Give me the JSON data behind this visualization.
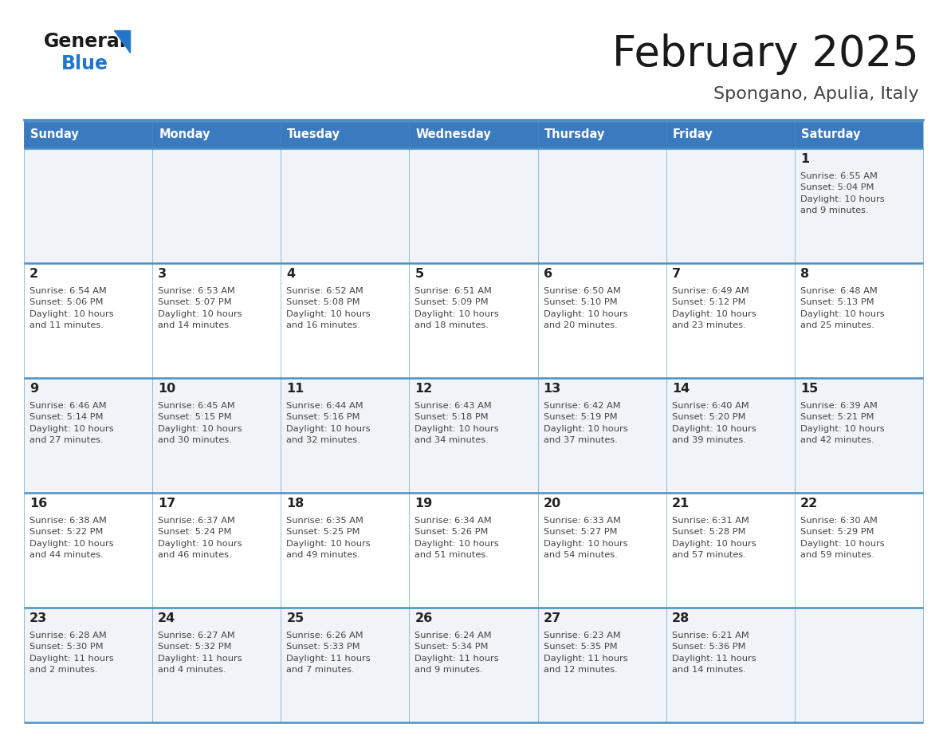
{
  "title": "February 2025",
  "subtitle": "Spongano, Apulia, Italy",
  "days_of_week": [
    "Sunday",
    "Monday",
    "Tuesday",
    "Wednesday",
    "Thursday",
    "Friday",
    "Saturday"
  ],
  "header_bg": "#3a7abf",
  "header_text": "#ffffff",
  "row_bg_light": "#f0f4f8",
  "row_bg_white": "#ffffff",
  "border_color": "#4a90c4",
  "title_color": "#1a1a1a",
  "subtitle_color": "#444444",
  "day_number_color": "#222222",
  "cell_text_color": "#444444",
  "logo_general_color": "#1a1a1a",
  "logo_blue_color": "#2277cc",
  "weeks": [
    [
      {
        "day": null,
        "info": null
      },
      {
        "day": null,
        "info": null
      },
      {
        "day": null,
        "info": null
      },
      {
        "day": null,
        "info": null
      },
      {
        "day": null,
        "info": null
      },
      {
        "day": null,
        "info": null
      },
      {
        "day": 1,
        "info": "Sunrise: 6:55 AM\nSunset: 5:04 PM\nDaylight: 10 hours\nand 9 minutes."
      }
    ],
    [
      {
        "day": 2,
        "info": "Sunrise: 6:54 AM\nSunset: 5:06 PM\nDaylight: 10 hours\nand 11 minutes."
      },
      {
        "day": 3,
        "info": "Sunrise: 6:53 AM\nSunset: 5:07 PM\nDaylight: 10 hours\nand 14 minutes."
      },
      {
        "day": 4,
        "info": "Sunrise: 6:52 AM\nSunset: 5:08 PM\nDaylight: 10 hours\nand 16 minutes."
      },
      {
        "day": 5,
        "info": "Sunrise: 6:51 AM\nSunset: 5:09 PM\nDaylight: 10 hours\nand 18 minutes."
      },
      {
        "day": 6,
        "info": "Sunrise: 6:50 AM\nSunset: 5:10 PM\nDaylight: 10 hours\nand 20 minutes."
      },
      {
        "day": 7,
        "info": "Sunrise: 6:49 AM\nSunset: 5:12 PM\nDaylight: 10 hours\nand 23 minutes."
      },
      {
        "day": 8,
        "info": "Sunrise: 6:48 AM\nSunset: 5:13 PM\nDaylight: 10 hours\nand 25 minutes."
      }
    ],
    [
      {
        "day": 9,
        "info": "Sunrise: 6:46 AM\nSunset: 5:14 PM\nDaylight: 10 hours\nand 27 minutes."
      },
      {
        "day": 10,
        "info": "Sunrise: 6:45 AM\nSunset: 5:15 PM\nDaylight: 10 hours\nand 30 minutes."
      },
      {
        "day": 11,
        "info": "Sunrise: 6:44 AM\nSunset: 5:16 PM\nDaylight: 10 hours\nand 32 minutes."
      },
      {
        "day": 12,
        "info": "Sunrise: 6:43 AM\nSunset: 5:18 PM\nDaylight: 10 hours\nand 34 minutes."
      },
      {
        "day": 13,
        "info": "Sunrise: 6:42 AM\nSunset: 5:19 PM\nDaylight: 10 hours\nand 37 minutes."
      },
      {
        "day": 14,
        "info": "Sunrise: 6:40 AM\nSunset: 5:20 PM\nDaylight: 10 hours\nand 39 minutes."
      },
      {
        "day": 15,
        "info": "Sunrise: 6:39 AM\nSunset: 5:21 PM\nDaylight: 10 hours\nand 42 minutes."
      }
    ],
    [
      {
        "day": 16,
        "info": "Sunrise: 6:38 AM\nSunset: 5:22 PM\nDaylight: 10 hours\nand 44 minutes."
      },
      {
        "day": 17,
        "info": "Sunrise: 6:37 AM\nSunset: 5:24 PM\nDaylight: 10 hours\nand 46 minutes."
      },
      {
        "day": 18,
        "info": "Sunrise: 6:35 AM\nSunset: 5:25 PM\nDaylight: 10 hours\nand 49 minutes."
      },
      {
        "day": 19,
        "info": "Sunrise: 6:34 AM\nSunset: 5:26 PM\nDaylight: 10 hours\nand 51 minutes."
      },
      {
        "day": 20,
        "info": "Sunrise: 6:33 AM\nSunset: 5:27 PM\nDaylight: 10 hours\nand 54 minutes."
      },
      {
        "day": 21,
        "info": "Sunrise: 6:31 AM\nSunset: 5:28 PM\nDaylight: 10 hours\nand 57 minutes."
      },
      {
        "day": 22,
        "info": "Sunrise: 6:30 AM\nSunset: 5:29 PM\nDaylight: 10 hours\nand 59 minutes."
      }
    ],
    [
      {
        "day": 23,
        "info": "Sunrise: 6:28 AM\nSunset: 5:30 PM\nDaylight: 11 hours\nand 2 minutes."
      },
      {
        "day": 24,
        "info": "Sunrise: 6:27 AM\nSunset: 5:32 PM\nDaylight: 11 hours\nand 4 minutes."
      },
      {
        "day": 25,
        "info": "Sunrise: 6:26 AM\nSunset: 5:33 PM\nDaylight: 11 hours\nand 7 minutes."
      },
      {
        "day": 26,
        "info": "Sunrise: 6:24 AM\nSunset: 5:34 PM\nDaylight: 11 hours\nand 9 minutes."
      },
      {
        "day": 27,
        "info": "Sunrise: 6:23 AM\nSunset: 5:35 PM\nDaylight: 11 hours\nand 12 minutes."
      },
      {
        "day": 28,
        "info": "Sunrise: 6:21 AM\nSunset: 5:36 PM\nDaylight: 11 hours\nand 14 minutes."
      },
      {
        "day": null,
        "info": null
      }
    ]
  ]
}
